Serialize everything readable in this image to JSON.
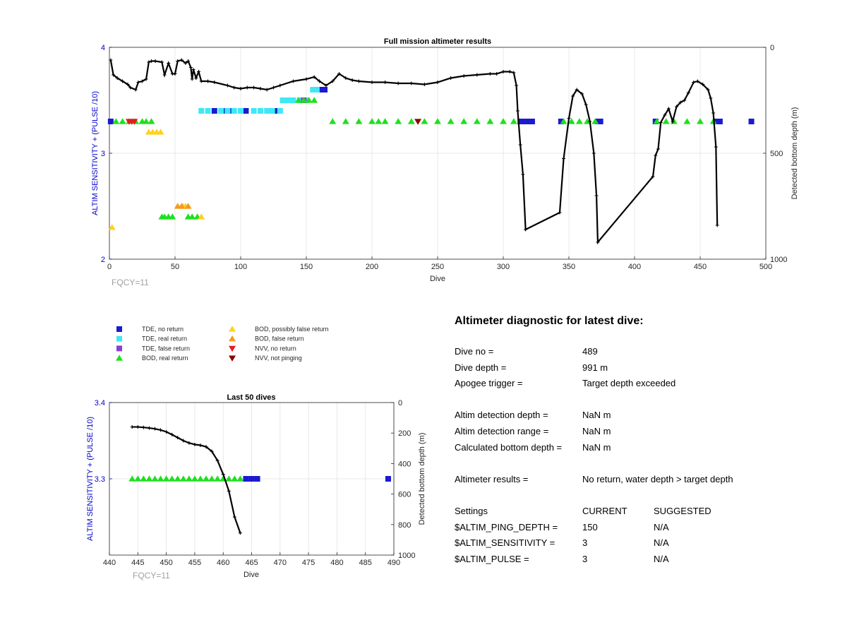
{
  "main_chart": {
    "title": "Full mission altimeter results",
    "xlabel": "Dive",
    "ylabel_left": "ALTIM SENSITIVITY + (PULSE /10)",
    "ylabel_right": "Detected bottom depth (m)",
    "note": "FQCY=11",
    "xticks": [
      "0",
      "50",
      "100",
      "150",
      "200",
      "250",
      "300",
      "350",
      "400",
      "450",
      "500"
    ],
    "yticks_left": [
      "2",
      "3",
      "4"
    ],
    "yticks_right": [
      "0",
      "500",
      "1000"
    ]
  },
  "inset_chart": {
    "title": "Last 50 dives",
    "xlabel": "Dive",
    "ylabel_left": "ALTIM SENSITIVITY + (PULSE /10)",
    "ylabel_right": "Detected bottom depth (m)",
    "note": "FQCY=11",
    "xticks": [
      "440",
      "445",
      "450",
      "455",
      "460",
      "465",
      "470",
      "475",
      "480",
      "485",
      "490"
    ],
    "yticks_left": [
      "3.3",
      "3.4"
    ],
    "yticks_right": [
      "0",
      "200",
      "400",
      "600",
      "800",
      "1000"
    ]
  },
  "legend": [
    {
      "label": "TDE, no return",
      "color": "#1a1ad0",
      "marker": "square"
    },
    {
      "label": "TDE, real return",
      "color": "#3fe8f5",
      "marker": "square"
    },
    {
      "label": "TDE, false return",
      "color": "#8a3fd6",
      "marker": "square"
    },
    {
      "label": "BOD, real return",
      "color": "#1ee01e",
      "marker": "triangle-up"
    },
    {
      "label": "BOD, possibly false return",
      "color": "#ffd21e",
      "marker": "triangle-up"
    },
    {
      "label": "BOD, false return",
      "color": "#f59a1e",
      "marker": "triangle-up"
    },
    {
      "label": "NVV, no return",
      "color": "#e01e1e",
      "marker": "triangle-down"
    },
    {
      "label": "NVV, not pinging",
      "color": "#8b0000",
      "marker": "triangle-down"
    }
  ],
  "diagnostic": {
    "heading": "Altimeter diagnostic for latest dive:",
    "dive_no_label": "Dive no =",
    "dive_no": "489",
    "dive_depth_label": "Dive depth =",
    "dive_depth": "991 m",
    "apogee_label": "Apogee trigger =",
    "apogee": "Target depth exceeded",
    "det_depth_label": "Altim detection depth =",
    "det_depth": "NaN m",
    "det_range_label": "Altim detection range =",
    "det_range": "NaN m",
    "calc_depth_label": "Calculated bottom depth =",
    "calc_depth": "NaN m",
    "results_label": "Altimeter results =",
    "results": "No return, water depth > target depth",
    "settings_label": "Settings",
    "current_label": "CURRENT",
    "suggested_label": "SUGGESTED",
    "ping_label": "$ALTIM_PING_DEPTH =",
    "ping_current": "150",
    "ping_suggested": "N/A",
    "sens_label": "$ALTIM_SENSITIVITY =",
    "sens_current": "3",
    "sens_suggested": "N/A",
    "pulse_label": "$ALTIM_PULSE =",
    "pulse_current": "3",
    "pulse_suggested": "N/A"
  },
  "chart_data": [
    {
      "type": "scatter",
      "title": "Full mission altimeter results",
      "xlabel": "Dive",
      "ylabel": "ALTIM SENSITIVITY + (PULSE /10)",
      "ylabel_right": "Detected bottom depth (m)",
      "xlim": [
        0,
        500
      ],
      "ylim": [
        2,
        4
      ],
      "ylim_right": [
        1000,
        0
      ],
      "grid": true,
      "series": [
        {
          "name": "TDE, no return",
          "marker": "square",
          "color": "#1a1ad0",
          "x": [
            1,
            80,
            86,
            92,
            104,
            126,
            134,
            160,
            162,
            164,
            313,
            316,
            320,
            322,
            344,
            372,
            374,
            416,
            462,
            465,
            489
          ],
          "y": [
            3.3,
            3.4,
            3.4,
            3.4,
            3.4,
            3.4,
            3.5,
            3.6,
            3.6,
            3.6,
            3.3,
            3.3,
            3.3,
            3.3,
            3.3,
            3.3,
            3.3,
            3.3,
            3.3,
            3.3,
            3.3
          ]
        },
        {
          "name": "TDE, real return",
          "marker": "square",
          "color": "#3fe8f5",
          "x": [
            70,
            75,
            85,
            90,
            95,
            100,
            110,
            115,
            120,
            124,
            130,
            132,
            136,
            140,
            145,
            150,
            155,
            158
          ],
          "y": [
            3.4,
            3.4,
            3.4,
            3.4,
            3.4,
            3.4,
            3.4,
            3.4,
            3.4,
            3.4,
            3.4,
            3.5,
            3.5,
            3.5,
            3.5,
            3.5,
            3.6,
            3.6
          ]
        },
        {
          "name": "TDE, false return",
          "marker": "square",
          "color": "#8a3fd6",
          "x": [
            148
          ],
          "y": [
            3.5
          ]
        },
        {
          "name": "BOD, real return",
          "marker": "triangle-up",
          "color": "#1ee01e",
          "x": [
            5,
            10,
            15,
            20,
            25,
            28,
            32,
            40,
            42,
            45,
            48,
            60,
            63,
            67,
            144,
            148,
            152,
            156,
            170,
            180,
            190,
            200,
            205,
            210,
            220,
            230,
            240,
            250,
            260,
            270,
            280,
            290,
            300,
            308,
            346,
            352,
            358,
            364,
            370,
            417,
            424,
            430,
            440,
            450,
            460
          ],
          "y": [
            3.3,
            3.3,
            3.3,
            3.3,
            3.3,
            3.3,
            3.3,
            2.4,
            2.4,
            2.4,
            2.4,
            2.4,
            2.4,
            2.4,
            3.5,
            3.5,
            3.5,
            3.5,
            3.3,
            3.3,
            3.3,
            3.3,
            3.3,
            3.3,
            3.3,
            3.3,
            3.3,
            3.3,
            3.3,
            3.3,
            3.3,
            3.3,
            3.3,
            3.3,
            3.3,
            3.3,
            3.3,
            3.3,
            3.3,
            3.3,
            3.3,
            3.3,
            3.3,
            3.3,
            3.3
          ]
        },
        {
          "name": "BOD, possibly false return",
          "marker": "triangle-up",
          "color": "#ffd21e",
          "x": [
            2,
            30,
            33,
            36,
            39,
            56,
            58,
            70
          ],
          "y": [
            2.3,
            3.2,
            3.2,
            3.2,
            3.2,
            2.5,
            2.5,
            2.4
          ]
        },
        {
          "name": "BOD, false return",
          "marker": "triangle-up",
          "color": "#f59a1e",
          "x": [
            52,
            55,
            60
          ],
          "y": [
            2.5,
            2.5,
            2.5
          ]
        },
        {
          "name": "NVV, no return",
          "marker": "triangle-down",
          "color": "#e01e1e",
          "x": [
            15,
            17,
            19
          ],
          "y": [
            3.3,
            3.3,
            3.3
          ]
        },
        {
          "name": "NVV, not pinging",
          "marker": "triangle-down",
          "color": "#8b0000",
          "x": [
            235
          ],
          "y": [
            3.3
          ]
        },
        {
          "name": "",
          "marker": "line-plus",
          "color": "#000000",
          "axis": "right",
          "x": [
            1,
            3,
            6,
            10,
            14,
            16,
            20,
            22,
            25,
            28,
            30,
            32,
            35,
            40,
            42,
            45,
            48,
            50,
            52,
            55,
            58,
            60,
            62,
            63,
            64,
            66,
            68,
            70,
            75,
            80,
            90,
            95,
            100,
            105,
            110,
            115,
            120,
            125,
            130,
            140,
            150,
            156,
            160,
            165,
            170,
            175,
            180,
            185,
            190,
            200,
            210,
            220,
            230,
            240,
            250,
            260,
            270,
            280,
            290,
            295,
            300,
            305,
            308,
            310,
            311,
            313,
            315,
            317,
            343,
            346,
            350,
            353,
            356,
            360,
            363,
            366,
            369,
            371,
            372,
            414,
            416,
            418,
            420,
            423,
            426,
            429,
            432,
            435,
            438,
            441,
            445,
            448,
            452,
            456,
            458,
            460,
            462,
            463
          ],
          "y": [
            60,
            130,
            145,
            160,
            175,
            190,
            200,
            165,
            160,
            150,
            70,
            65,
            65,
            70,
            130,
            75,
            125,
            125,
            65,
            60,
            75,
            65,
            95,
            150,
            105,
            145,
            115,
            160,
            160,
            165,
            180,
            190,
            195,
            190,
            190,
            195,
            200,
            190,
            180,
            160,
            150,
            140,
            160,
            180,
            160,
            125,
            145,
            155,
            160,
            165,
            165,
            170,
            170,
            175,
            165,
            145,
            135,
            130,
            125,
            125,
            115,
            115,
            120,
            180,
            300,
            460,
            600,
            860,
            780,
            525,
            335,
            230,
            200,
            220,
            270,
            350,
            500,
            700,
            920,
            610,
            510,
            480,
            355,
            320,
            290,
            350,
            280,
            260,
            250,
            215,
            165,
            160,
            175,
            200,
            240,
            310,
            470,
            840
          ]
        }
      ]
    },
    {
      "type": "scatter",
      "title": "Last 50 dives",
      "xlabel": "Dive",
      "ylabel": "ALTIM SENSITIVITY + (PULSE /10)",
      "ylabel_right": "Detected bottom depth (m)",
      "xlim": [
        440,
        490
      ],
      "ylim": [
        3.2,
        3.4
      ],
      "ylim_right": [
        1000,
        0
      ],
      "grid": true,
      "series": [
        {
          "name": "BOD, real return",
          "marker": "triangle-up",
          "color": "#1ee01e",
          "x": [
            444,
            445,
            446,
            447,
            448,
            449,
            450,
            451,
            452,
            453,
            454,
            455,
            456,
            457,
            458,
            459,
            460,
            461,
            462,
            463
          ],
          "y": [
            3.3,
            3.3,
            3.3,
            3.3,
            3.3,
            3.3,
            3.3,
            3.3,
            3.3,
            3.3,
            3.3,
            3.3,
            3.3,
            3.3,
            3.3,
            3.3,
            3.3,
            3.3,
            3.3,
            3.3
          ]
        },
        {
          "name": "TDE, no return",
          "marker": "square",
          "color": "#1a1ad0",
          "x": [
            464,
            465,
            466,
            489
          ],
          "y": [
            3.3,
            3.3,
            3.3,
            3.3
          ]
        },
        {
          "name": "",
          "marker": "line-plus",
          "color": "#000000",
          "axis": "right",
          "x": [
            444,
            445,
            446,
            447,
            448,
            449,
            450,
            451,
            452,
            453,
            454,
            455,
            456,
            457,
            458,
            459,
            460,
            461,
            462,
            463
          ],
          "y": [
            160,
            160,
            163,
            167,
            172,
            180,
            192,
            210,
            230,
            250,
            265,
            275,
            280,
            290,
            320,
            380,
            470,
            580,
            750,
            855
          ]
        }
      ]
    }
  ]
}
